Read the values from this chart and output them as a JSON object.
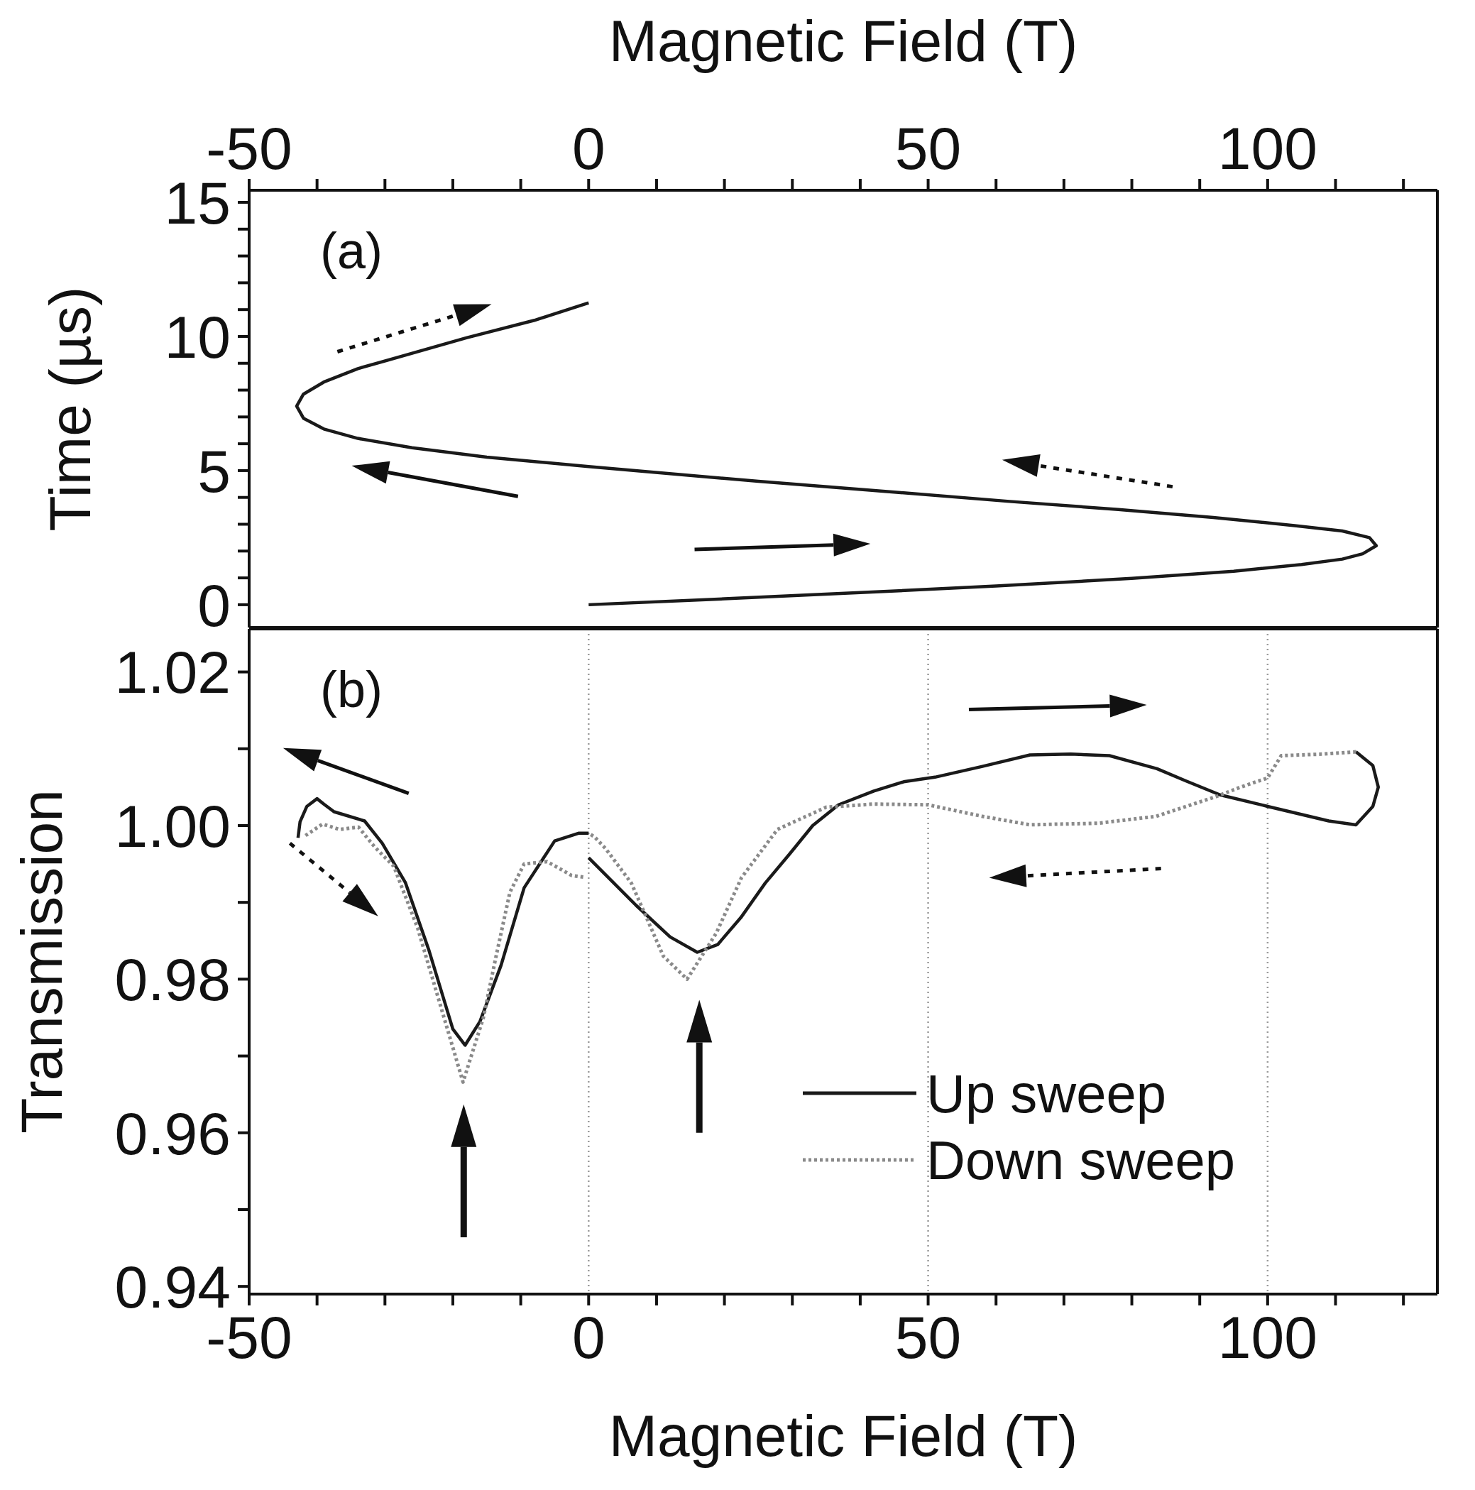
{
  "chart_data": [
    {
      "type": "line",
      "x2label": "Magnetic Field (T)",
      "ylabel": "Time (µs)",
      "annotations": [
        "(a)"
      ],
      "series": [
        {
          "color": "#1a1a1a",
          "line_style": "solid",
          "x": [
            0,
            20,
            40,
            60,
            80,
            95,
            105,
            111,
            114,
            116,
            115,
            111,
            104,
            92,
            78,
            62,
            45,
            25,
            0,
            -15,
            -26,
            -34,
            -39,
            -42,
            -43,
            -42,
            -39,
            -34,
            -27,
            -18,
            -8,
            0
          ],
          "values": [
            0,
            0.22,
            0.45,
            0.7,
            0.98,
            1.25,
            1.5,
            1.7,
            1.9,
            2.2,
            2.5,
            2.75,
            2.95,
            3.25,
            3.55,
            3.85,
            4.2,
            4.6,
            5.15,
            5.5,
            5.85,
            6.2,
            6.55,
            6.95,
            7.4,
            7.85,
            8.3,
            8.8,
            9.3,
            9.95,
            10.6,
            11.25
          ]
        }
      ],
      "xlim": [
        -50,
        125
      ],
      "xticks": [
        {
          "value": -50,
          "label": null
        },
        {
          "value": -40,
          "label": null
        },
        {
          "value": -30,
          "label": null
        },
        {
          "value": -20,
          "label": null
        },
        {
          "value": -10,
          "label": null
        },
        {
          "value": 0,
          "label": null
        },
        {
          "value": 10,
          "label": null
        },
        {
          "value": 20,
          "label": null
        },
        {
          "value": 30,
          "label": null
        },
        {
          "value": 40,
          "label": null
        },
        {
          "value": 50,
          "label": null
        },
        {
          "value": 60,
          "label": null
        },
        {
          "value": 70,
          "label": null
        },
        {
          "value": 80,
          "label": null
        },
        {
          "value": 90,
          "label": null
        },
        {
          "value": 100,
          "label": null
        },
        {
          "value": 110,
          "label": null
        },
        {
          "value": 120,
          "label": null
        }
      ],
      "x2lim": [
        -50,
        125
      ],
      "x2ticks": [
        -50,
        {
          "value": -40,
          "label": null
        },
        {
          "value": -30,
          "label": null
        },
        {
          "value": -20,
          "label": null
        },
        {
          "value": -10,
          "label": null
        },
        0,
        {
          "value": 10,
          "label": null
        },
        {
          "value": 20,
          "label": null
        },
        {
          "value": 30,
          "label": null
        },
        {
          "value": 40,
          "label": null
        },
        50,
        {
          "value": 60,
          "label": null
        },
        {
          "value": 70,
          "label": null
        },
        {
          "value": 80,
          "label": null
        },
        {
          "value": 90,
          "label": null
        },
        100,
        {
          "value": 110,
          "label": null
        },
        {
          "value": 120,
          "label": null
        }
      ],
      "ylim": [
        -0.85,
        15.45
      ],
      "yticks": [
        0,
        {
          "value": 1,
          "label": null
        },
        {
          "value": 2,
          "label": null
        },
        {
          "value": 3,
          "label": null
        },
        {
          "value": 4,
          "label": null
        },
        5,
        {
          "value": 6,
          "label": null
        },
        {
          "value": 7,
          "label": null
        },
        {
          "value": 8,
          "label": null
        },
        {
          "value": 9,
          "label": null
        },
        10,
        {
          "value": 11,
          "label": null
        },
        {
          "value": 12,
          "label": null
        },
        {
          "value": 13,
          "label": null
        },
        {
          "value": 14,
          "label": null
        },
        15
      ],
      "tick_labels": "y",
      "grid": "x"
    },
    {
      "type": "line",
      "xlabel": "Magnetic Field (T)",
      "ylabel": "Transmission",
      "annotations": [
        "(b)"
      ],
      "series": [
        {
          "name": "Up sweep",
          "color": "#1a1a1a",
          "line_style": "solid",
          "x": [
            0,
            7,
            12,
            16,
            19,
            22.4,
            26,
            29.6,
            33,
            36.8,
            42,
            46.4,
            51,
            58,
            65,
            71,
            76.7,
            83.7,
            88,
            93,
            100,
            109,
            113,
            115.5,
            116.3,
            115.5,
            113,
            null,
            0,
            -1.5,
            -5,
            -9.5,
            -12.9,
            -16,
            -18.2,
            -20,
            -23.5,
            -27,
            -30.4,
            -33,
            -37.5,
            -39,
            -40,
            -41.5,
            -42.5,
            -42.8
          ],
          "values": [
            0.9958,
            0.9896,
            0.9855,
            0.9835,
            0.9845,
            0.988,
            0.9925,
            0.9963,
            1.0,
            1.0027,
            1.0045,
            1.0057,
            1.0063,
            1.0077,
            1.0092,
            1.0093,
            1.0091,
            1.0074,
            1.0058,
            1.004,
            1.0025,
            1.0006,
            1.0001,
            1.0025,
            1.005,
            1.0078,
            1.0096,
            null,
            0.999,
            0.999,
            0.998,
            0.9919,
            0.9818,
            0.9745,
            0.9714,
            0.9735,
            0.9837,
            0.9926,
            0.9977,
            1.0006,
            1.0018,
            1.0028,
            1.0035,
            1.0025,
            1.0005,
            0.9984
          ]
        },
        {
          "name": "Down sweep",
          "color": "#8a8a8a",
          "line_style": "dotted",
          "x": [
            113,
            108,
            102,
            100,
            96,
            92.5,
            88,
            83.6,
            75,
            65,
            58,
            50,
            42,
            35,
            27.8,
            22.5,
            18.8,
            14.5,
            11,
            6.3,
            2.5,
            0.9,
            0,
            null,
            -41.7,
            -39.2,
            -36.7,
            -33.9,
            -31.5,
            -28.7,
            -25.2,
            -21.7,
            -18.5,
            -15.5,
            -13.7,
            -11.6,
            -9.5,
            -6.1,
            -2.5,
            -0.8
          ],
          "values": [
            1.0096,
            1.0093,
            1.0091,
            1.0062,
            1.005,
            1.0038,
            1.0025,
            1.0012,
            1.0003,
            1.0001,
            1.0012,
            1.0027,
            1.0028,
            1.0024,
            0.9995,
            0.9932,
            0.986,
            0.98,
            0.983,
            0.9925,
            0.997,
            0.9985,
            0.999,
            null,
            0.9987,
            1.0002,
            0.9995,
            0.9998,
            0.9972,
            0.9947,
            0.9867,
            0.9762,
            0.9666,
            0.975,
            0.9827,
            0.9913,
            0.995,
            0.9953,
            0.9935,
            0.9933
          ]
        }
      ],
      "xlim": [
        -50,
        125
      ],
      "xticks": [
        -50,
        {
          "value": -40,
          "label": null
        },
        {
          "value": -30,
          "label": null
        },
        {
          "value": -20,
          "label": null
        },
        {
          "value": -10,
          "label": null
        },
        0,
        {
          "value": 10,
          "label": null
        },
        {
          "value": 20,
          "label": null
        },
        {
          "value": 30,
          "label": null
        },
        {
          "value": 40,
          "label": null
        },
        50,
        {
          "value": 60,
          "label": null
        },
        {
          "value": 70,
          "label": null
        },
        {
          "value": 80,
          "label": null
        },
        {
          "value": 90,
          "label": null
        },
        100,
        {
          "value": 110,
          "label": null
        },
        {
          "value": 120,
          "label": null
        }
      ],
      "ylim": [
        0.939,
        1.0256
      ],
      "yticks": [
        0.94,
        {
          "value": 0.95,
          "label": null
        },
        0.96,
        {
          "value": 0.97,
          "label": null
        },
        0.98,
        {
          "value": 0.99,
          "label": null
        },
        {
          "value": 1,
          "label": "1.00"
        },
        {
          "value": 1.01,
          "label": null
        },
        1.02
      ],
      "legend": "bottom right",
      "grid": "x"
    }
  ]
}
